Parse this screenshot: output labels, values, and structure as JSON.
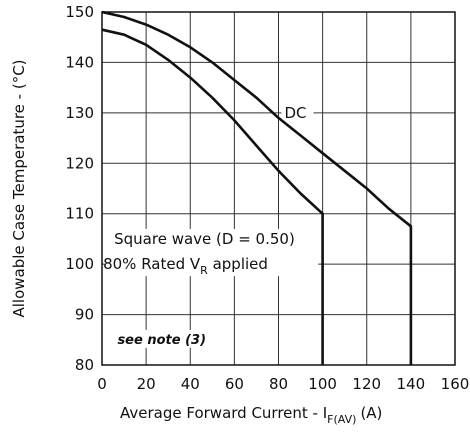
{
  "chart_data": {
    "type": "line",
    "title": "",
    "xlabel": {
      "main": "Average Forward Current - I",
      "sub": "F(AV)",
      "unit": "(A)"
    },
    "ylabel": "Allowable Case Temperature - (°C)",
    "xlim": [
      0,
      160
    ],
    "ylim": [
      80,
      150
    ],
    "x_ticks": [
      0,
      20,
      40,
      60,
      80,
      100,
      120,
      140,
      160
    ],
    "y_ticks": [
      80,
      90,
      100,
      110,
      120,
      130,
      140,
      150
    ],
    "grid": true,
    "series": [
      {
        "name": "Square wave (D = 0.50)",
        "points": [
          [
            0,
            146.5
          ],
          [
            10,
            145.5
          ],
          [
            20,
            143.5
          ],
          [
            30,
            140.5
          ],
          [
            40,
            137
          ],
          [
            50,
            133
          ],
          [
            60,
            128.5
          ],
          [
            70,
            123.5
          ],
          [
            80,
            118.5
          ],
          [
            90,
            114
          ],
          [
            100,
            110
          ],
          [
            100,
            80
          ]
        ]
      },
      {
        "name": "DC",
        "points": [
          [
            0,
            150
          ],
          [
            10,
            149
          ],
          [
            20,
            147.5
          ],
          [
            30,
            145.5
          ],
          [
            40,
            143
          ],
          [
            50,
            140
          ],
          [
            60,
            136.5
          ],
          [
            70,
            133
          ],
          [
            80,
            129
          ],
          [
            90,
            125.5
          ],
          [
            100,
            122
          ],
          [
            110,
            118.5
          ],
          [
            120,
            115
          ],
          [
            130,
            111
          ],
          [
            140,
            107.5
          ],
          [
            140,
            80
          ]
        ]
      }
    ],
    "annotations": {
      "dc_label": "DC",
      "square_line1": "Square wave (D = 0.50)",
      "square_line2_pre": "80% Rated V",
      "square_line2_sub": "R",
      "square_line2_post": " applied",
      "note": "see note (3)"
    }
  }
}
